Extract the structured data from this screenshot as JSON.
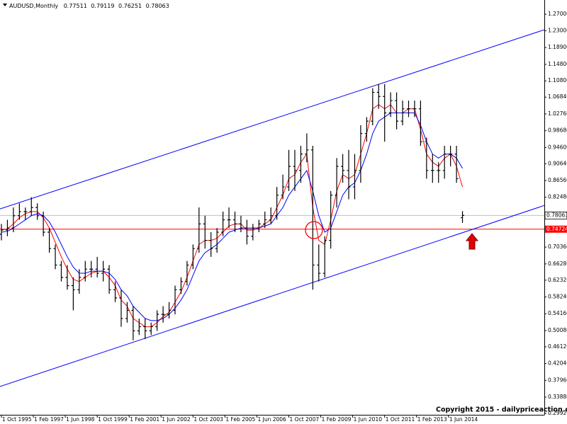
{
  "chart_data": {
    "type": "ohlc",
    "symbol": "AUDUSD,Monthly",
    "color": "#000000",
    "x": [
      "1995-10",
      "1996-01",
      "1996-04",
      "1996-07",
      "1996-10",
      "1997-01",
      "1997-04",
      "1997-07",
      "1997-10",
      "1998-01",
      "1998-04",
      "1998-07",
      "1998-10",
      "1999-01",
      "1999-04",
      "1999-07",
      "1999-10",
      "2000-01",
      "2000-04",
      "2000-07",
      "2000-10",
      "2001-01",
      "2001-04",
      "2001-07",
      "2001-10",
      "2002-01",
      "2002-04",
      "2002-07",
      "2002-10",
      "2003-01",
      "2003-04",
      "2003-07",
      "2003-10",
      "2004-01",
      "2004-04",
      "2004-07",
      "2004-10",
      "2005-01",
      "2005-04",
      "2005-07",
      "2005-10",
      "2006-01",
      "2006-04",
      "2006-07",
      "2006-10",
      "2007-01",
      "2007-04",
      "2007-07",
      "2007-10",
      "2008-01",
      "2008-04",
      "2008-07",
      "2008-10",
      "2009-01",
      "2009-04",
      "2009-07",
      "2009-10",
      "2010-01",
      "2010-04",
      "2010-07",
      "2010-10",
      "2011-01",
      "2011-04",
      "2011-07",
      "2011-10",
      "2012-01",
      "2012-04",
      "2012-07",
      "2012-10",
      "2013-01",
      "2013-04",
      "2013-07",
      "2013-10",
      "2014-01",
      "2014-04",
      "2014-07",
      "2014-10",
      "2015-01"
    ],
    "open": [
      0.735,
      0.745,
      0.75,
      0.78,
      0.79,
      0.79,
      0.8,
      0.78,
      0.74,
      0.7,
      0.66,
      0.63,
      0.61,
      0.6,
      0.63,
      0.65,
      0.65,
      0.64,
      0.65,
      0.6,
      0.58,
      0.53,
      0.55,
      0.5,
      0.51,
      0.5,
      0.51,
      0.54,
      0.54,
      0.55,
      0.6,
      0.62,
      0.66,
      0.7,
      0.76,
      0.72,
      0.7,
      0.74,
      0.77,
      0.77,
      0.76,
      0.75,
      0.73,
      0.75,
      0.76,
      0.77,
      0.78,
      0.83,
      0.85,
      0.9,
      0.89,
      0.93,
      0.94,
      0.66,
      0.64,
      0.72,
      0.83,
      0.9,
      0.89,
      0.85,
      0.89,
      0.98,
      1.01,
      1.08,
      1.07,
      1.03,
      1.06,
      1.01,
      1.04,
      1.04,
      1.04,
      0.96,
      0.89,
      0.89,
      0.89,
      0.93,
      0.93,
      0.77511
    ],
    "high": [
      0.76,
      0.77,
      0.8,
      0.81,
      0.8,
      0.825,
      0.81,
      0.79,
      0.75,
      0.71,
      0.67,
      0.66,
      0.63,
      0.65,
      0.67,
      0.67,
      0.68,
      0.67,
      0.66,
      0.62,
      0.6,
      0.57,
      0.56,
      0.53,
      0.53,
      0.52,
      0.55,
      0.56,
      0.57,
      0.61,
      0.63,
      0.67,
      0.71,
      0.8,
      0.78,
      0.74,
      0.75,
      0.79,
      0.8,
      0.79,
      0.78,
      0.77,
      0.76,
      0.77,
      0.79,
      0.8,
      0.85,
      0.88,
      0.94,
      0.94,
      0.95,
      0.98,
      0.95,
      0.71,
      0.73,
      0.84,
      0.92,
      0.93,
      0.94,
      0.93,
      1.0,
      1.02,
      1.09,
      1.1,
      1.1,
      1.08,
      1.08,
      1.06,
      1.06,
      1.06,
      1.06,
      0.97,
      0.93,
      0.91,
      0.95,
      0.95,
      0.95,
      0.79119
    ],
    "low": [
      0.72,
      0.73,
      0.74,
      0.77,
      0.77,
      0.78,
      0.77,
      0.73,
      0.69,
      0.65,
      0.62,
      0.6,
      0.55,
      0.59,
      0.62,
      0.63,
      0.63,
      0.62,
      0.59,
      0.57,
      0.51,
      0.52,
      0.477,
      0.49,
      0.48,
      0.49,
      0.5,
      0.52,
      0.53,
      0.54,
      0.59,
      0.61,
      0.65,
      0.69,
      0.7,
      0.68,
      0.69,
      0.73,
      0.75,
      0.74,
      0.74,
      0.71,
      0.72,
      0.74,
      0.75,
      0.76,
      0.77,
      0.82,
      0.84,
      0.84,
      0.86,
      0.91,
      0.6,
      0.62,
      0.63,
      0.7,
      0.8,
      0.86,
      0.82,
      0.82,
      0.86,
      0.96,
      1.0,
      1.04,
      0.96,
      1.02,
      0.99,
      1.0,
      1.02,
      1.02,
      0.95,
      0.87,
      0.86,
      0.86,
      0.87,
      0.9,
      0.86,
      0.76251
    ],
    "close": [
      0.745,
      0.75,
      0.78,
      0.79,
      0.79,
      0.8,
      0.78,
      0.74,
      0.7,
      0.66,
      0.63,
      0.61,
      0.6,
      0.63,
      0.65,
      0.65,
      0.64,
      0.65,
      0.6,
      0.58,
      0.53,
      0.55,
      0.5,
      0.51,
      0.5,
      0.51,
      0.54,
      0.54,
      0.55,
      0.6,
      0.62,
      0.66,
      0.7,
      0.76,
      0.72,
      0.7,
      0.74,
      0.77,
      0.77,
      0.76,
      0.75,
      0.73,
      0.75,
      0.76,
      0.77,
      0.78,
      0.83,
      0.85,
      0.9,
      0.89,
      0.93,
      0.94,
      0.66,
      0.64,
      0.72,
      0.83,
      0.9,
      0.89,
      0.85,
      0.89,
      0.98,
      1.01,
      1.08,
      1.07,
      1.03,
      1.06,
      1.01,
      1.04,
      1.04,
      1.04,
      0.96,
      0.89,
      0.89,
      0.89,
      0.93,
      0.93,
      0.87,
      0.78063
    ],
    "moving_averages": [
      {
        "color": "#ff0000",
        "values": [
          0.745,
          0.748,
          0.76,
          0.775,
          0.785,
          0.79,
          0.79,
          0.775,
          0.75,
          0.715,
          0.68,
          0.65,
          0.625,
          0.62,
          0.63,
          0.64,
          0.645,
          0.645,
          0.63,
          0.61,
          0.575,
          0.56,
          0.53,
          0.52,
          0.51,
          0.51,
          0.52,
          0.535,
          0.545,
          0.57,
          0.595,
          0.63,
          0.67,
          0.71,
          0.72,
          0.72,
          0.725,
          0.74,
          0.755,
          0.76,
          0.76,
          0.745,
          0.745,
          0.75,
          0.76,
          0.77,
          0.8,
          0.83,
          0.87,
          0.88,
          0.91,
          0.93,
          0.8,
          0.72,
          0.71,
          0.77,
          0.84,
          0.88,
          0.87,
          0.88,
          0.93,
          0.98,
          1.04,
          1.05,
          1.04,
          1.05,
          1.03,
          1.03,
          1.04,
          1.04,
          0.99,
          0.93,
          0.91,
          0.9,
          0.92,
          0.93,
          0.9,
          0.85
        ]
      },
      {
        "color": "#0000ff",
        "values": [
          0.74,
          0.742,
          0.75,
          0.76,
          0.77,
          0.78,
          0.785,
          0.78,
          0.765,
          0.74,
          0.71,
          0.68,
          0.655,
          0.64,
          0.64,
          0.645,
          0.645,
          0.645,
          0.64,
          0.625,
          0.6,
          0.585,
          0.56,
          0.545,
          0.53,
          0.525,
          0.525,
          0.53,
          0.54,
          0.555,
          0.575,
          0.6,
          0.635,
          0.67,
          0.69,
          0.7,
          0.71,
          0.725,
          0.74,
          0.745,
          0.75,
          0.75,
          0.75,
          0.75,
          0.755,
          0.76,
          0.78,
          0.8,
          0.83,
          0.85,
          0.87,
          0.89,
          0.84,
          0.78,
          0.74,
          0.75,
          0.79,
          0.83,
          0.85,
          0.86,
          0.89,
          0.93,
          0.98,
          1.01,
          1.02,
          1.03,
          1.03,
          1.03,
          1.03,
          1.03,
          1.0,
          0.96,
          0.93,
          0.92,
          0.93,
          0.93,
          0.92,
          0.895
        ]
      }
    ],
    "trendlines": [
      {
        "color": "#0000ff",
        "points": [
          {
            "x": "1996-11",
            "y": 0.8184
          },
          {
            "x": "2011-07",
            "y": 1.0996
          }
        ]
      },
      {
        "color": "#0000ff",
        "points": [
          {
            "x": "2001-04",
            "y": 0.4723
          },
          {
            "x": "2008-10",
            "y": 0.6176
          }
        ]
      }
    ],
    "hlines": [
      {
        "value": 0.74724,
        "color": "#ff0000"
      }
    ],
    "price_line_color": "#c0c0c0",
    "xlim": [
      "1995-10",
      "2018-06"
    ],
    "ylim": [
      0.2958,
      1.3046
    ],
    "xticks": [
      {
        "value": "1995-10",
        "label": "1 Oct 1995"
      },
      {
        "value": "1997-02",
        "label": "1 Feb 1997"
      },
      {
        "value": "1998-06",
        "label": "1 Jun 1998"
      },
      {
        "value": "1999-10",
        "label": "1 Oct 1999"
      },
      {
        "value": "2001-02",
        "label": "1 Feb 2001"
      },
      {
        "value": "2002-06",
        "label": "1 Jun 2002"
      },
      {
        "value": "2003-10",
        "label": "1 Oct 2003"
      },
      {
        "value": "2005-02",
        "label": "1 Feb 2005"
      },
      {
        "value": "2006-06",
        "label": "1 Jun 2006"
      },
      {
        "value": "2007-10",
        "label": "1 Oct 2007"
      },
      {
        "value": "2009-02",
        "label": "1 Feb 2009"
      },
      {
        "value": "2010-06",
        "label": "1 Jun 2010"
      },
      {
        "value": "2011-10",
        "label": "1 Oct 2011"
      },
      {
        "value": "2013-02",
        "label": "1 Feb 2013"
      },
      {
        "value": "2014-06",
        "label": "1 Jun 2014"
      }
    ],
    "yticks": [
      {
        "value": 1.27,
        "label": "1.27000"
      },
      {
        "value": 1.23,
        "label": "1.23000"
      },
      {
        "value": 1.189,
        "label": "1.18900"
      },
      {
        "value": 1.148,
        "label": "1.14800"
      },
      {
        "value": 1.108,
        "label": "1.10800"
      },
      {
        "value": 1.0684,
        "label": "1.06840"
      },
      {
        "value": 1.0276,
        "label": "1.02760"
      },
      {
        "value": 0.9868,
        "label": "0.98680"
      },
      {
        "value": 0.946,
        "label": "0.94600"
      },
      {
        "value": 0.9064,
        "label": "0.90640"
      },
      {
        "value": 0.8656,
        "label": "0.86560"
      },
      {
        "value": 0.8248,
        "label": "0.82480"
      },
      {
        "value": 0.7036,
        "label": "0.70360"
      },
      {
        "value": 0.6628,
        "label": "0.66280"
      },
      {
        "value": 0.6232,
        "label": "0.62320"
      },
      {
        "value": 0.5824,
        "label": "0.58240"
      },
      {
        "value": 0.5416,
        "label": "0.54160"
      },
      {
        "value": 0.5008,
        "label": "0.50080"
      },
      {
        "value": 0.4612,
        "label": "0.46120"
      },
      {
        "value": 0.4204,
        "label": "0.42040"
      },
      {
        "value": 0.3796,
        "label": "0.37960"
      },
      {
        "value": 0.3388,
        "label": "0.33880"
      },
      {
        "value": 0.2992,
        "label": "0.29920"
      }
    ],
    "copyright": "Copyright 2015 - dailypriceaction.com"
  }
}
